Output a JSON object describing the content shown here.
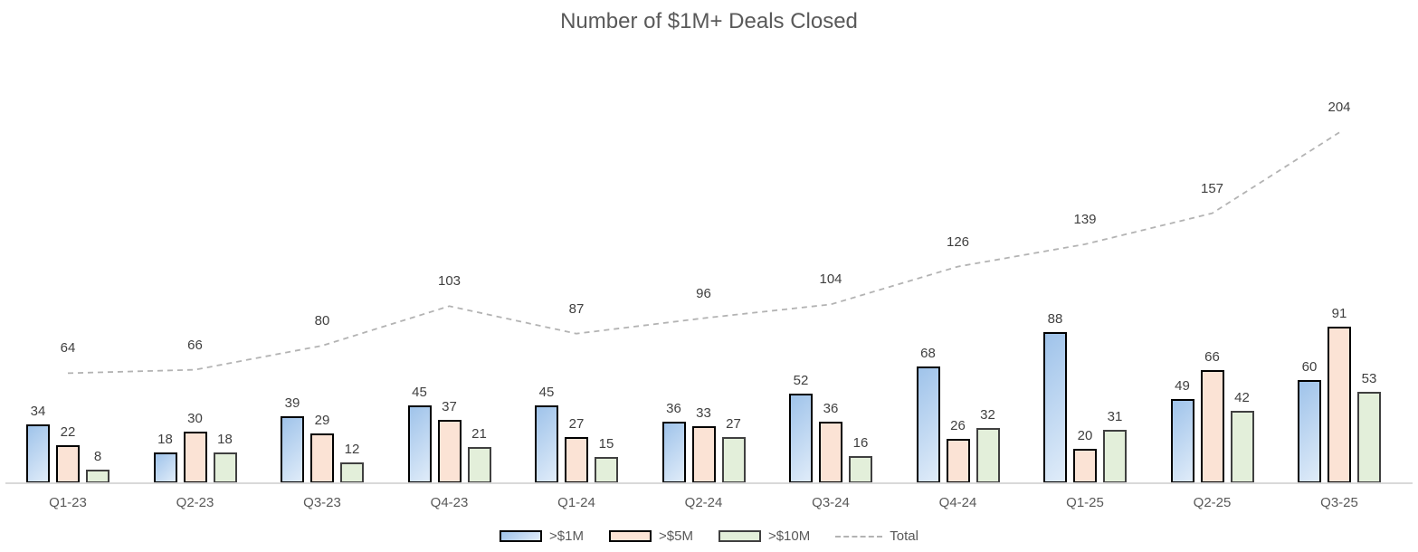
{
  "chart_data": {
    "type": "bar",
    "title": "Number of $1M+ Deals Closed",
    "categories": [
      "Q1-23",
      "Q2-23",
      "Q3-23",
      "Q4-23",
      "Q1-24",
      "Q2-24",
      "Q3-24",
      "Q4-24",
      "Q1-25",
      "Q2-25",
      "Q3-25"
    ],
    "series": [
      {
        "name": ">$1M",
        "type": "bar",
        "values": [
          34,
          18,
          39,
          45,
          45,
          36,
          52,
          68,
          88,
          49,
          60
        ]
      },
      {
        "name": ">$5M",
        "type": "bar",
        "values": [
          22,
          30,
          29,
          37,
          27,
          33,
          36,
          26,
          20,
          66,
          91
        ]
      },
      {
        "name": ">$10M",
        "type": "bar",
        "values": [
          8,
          18,
          12,
          21,
          15,
          27,
          16,
          32,
          31,
          42,
          53
        ]
      },
      {
        "name": "Total",
        "type": "line",
        "values": [
          64,
          66,
          80,
          103,
          87,
          96,
          104,
          126,
          139,
          157,
          204
        ]
      }
    ],
    "xlabel": "",
    "ylabel": "",
    "ylim": [
      0,
      250
    ],
    "grid": false,
    "y_axis_visible": false,
    "legend_position": "bottom",
    "data_labels": true
  },
  "colors": {
    "title_text": "#595959",
    "axis_text": "#595959",
    "value_label_text": "#404040",
    "bar1_fill_top": "#9fc3ea",
    "bar1_fill_bottom": "#e0ecf9",
    "bar1_border": "#000000",
    "bar2_fill": "#fbe3d5",
    "bar2_border": "#000000",
    "bar3_fill": "#e3efda",
    "bar3_border": "#404040",
    "total_line": "#b3b3b3",
    "axis_line": "#d9d9d9"
  }
}
